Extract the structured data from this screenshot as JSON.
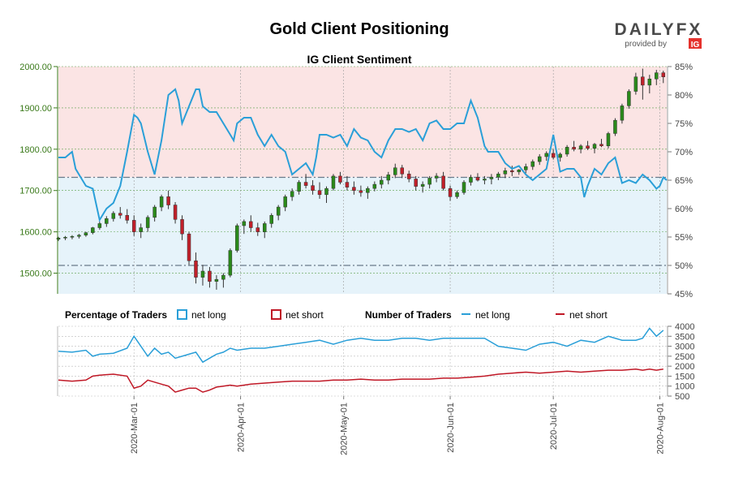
{
  "header": {
    "title": "Gold Client Positioning",
    "brand_name": "DAILYFX",
    "brand_sub": "provided by",
    "brand_ig": "IG"
  },
  "colors": {
    "long": "#2a9fd8",
    "short": "#c01826",
    "bull": "#2a8a1a",
    "bear": "#c0202a",
    "long_zone": "#e6f3fa",
    "short_zone": "#fbe4e4",
    "price_axis": "#3a7a1a"
  },
  "chart_data": [
    {
      "type": "candlestick+line",
      "title": "IG Client Sentiment",
      "y_left_ticks": [
        "2000.00",
        "1900.00",
        "1800.00",
        "1700.00",
        "1600.00",
        "1500.00"
      ],
      "y_left_range": [
        1450,
        2000
      ],
      "y_right_ticks": [
        "85%",
        "80%",
        "75%",
        "70%",
        "65%",
        "60%",
        "55%",
        "50%",
        "45%"
      ],
      "y_right_range": [
        45,
        85
      ],
      "x_ticks": [
        "2020-Mar-01",
        "2020-Apr-01",
        "2020-May-01",
        "2020-Jun-01",
        "2020-Jul-01",
        "2020-Aug-01"
      ],
      "x_range": [
        0,
        177
      ],
      "x_tick_positions": [
        22,
        53,
        83,
        114,
        144,
        175
      ],
      "reference_lines_pct": [
        65.5,
        50
      ],
      "net_long_pct": {
        "x": [
          0,
          2,
          4,
          5,
          6,
          8,
          10,
          12,
          14,
          16,
          18,
          20,
          22,
          23,
          24,
          26,
          27,
          28,
          30,
          32,
          34,
          35,
          36,
          38,
          40,
          41,
          42,
          44,
          46,
          48,
          50,
          51,
          52,
          54,
          56,
          58,
          60,
          62,
          64,
          66,
          67,
          68,
          70,
          72,
          74,
          75,
          76,
          78,
          80,
          82,
          84,
          86,
          88,
          90,
          92,
          94,
          96,
          98,
          100,
          102,
          104,
          106,
          108,
          110,
          112,
          114,
          116,
          118,
          120,
          122,
          124,
          125,
          126,
          128,
          130,
          132,
          134,
          136,
          138,
          140,
          142,
          144,
          146,
          148,
          150,
          152,
          153,
          154,
          156,
          158,
          160,
          162,
          164,
          166,
          168,
          170,
          172,
          174,
          175,
          176,
          177
        ],
        "y": [
          69,
          69,
          70,
          67,
          66,
          64,
          63.5,
          58,
          60,
          61,
          64,
          70,
          76.5,
          76,
          75,
          70,
          68,
          66,
          72,
          80,
          81,
          79,
          75,
          78,
          81,
          81,
          78,
          77,
          77,
          75,
          73,
          72,
          75,
          76,
          76,
          73,
          71,
          73,
          71,
          70,
          68,
          66,
          67,
          68,
          66,
          69,
          73,
          73,
          72.5,
          73,
          71,
          74,
          72.5,
          72,
          70,
          69,
          72,
          74,
          74,
          73.5,
          74,
          72,
          75,
          75.5,
          74,
          74,
          75,
          75,
          79,
          76,
          71,
          70,
          70,
          70,
          68,
          67,
          67.5,
          66,
          65,
          66,
          67,
          73,
          66.5,
          67,
          67,
          65.5,
          62,
          64,
          67,
          66,
          68,
          69,
          64.5,
          65,
          64.5,
          66,
          65,
          63.5,
          64,
          65.5,
          65
        ]
      },
      "price_ohlc": [
        [
          1582,
          1588,
          1578,
          1585
        ],
        [
          1585,
          1590,
          1580,
          1587
        ],
        [
          1587,
          1592,
          1582,
          1589
        ],
        [
          1589,
          1595,
          1584,
          1592
        ],
        [
          1592,
          1600,
          1588,
          1598
        ],
        [
          1598,
          1612,
          1594,
          1610
        ],
        [
          1610,
          1625,
          1605,
          1620
        ],
        [
          1620,
          1638,
          1612,
          1632
        ],
        [
          1632,
          1650,
          1625,
          1645
        ],
        [
          1645,
          1660,
          1632,
          1640
        ],
        [
          1640,
          1655,
          1620,
          1628
        ],
        [
          1628,
          1640,
          1590,
          1600
        ],
        [
          1600,
          1620,
          1585,
          1610
        ],
        [
          1610,
          1640,
          1600,
          1635
        ],
        [
          1635,
          1665,
          1625,
          1660
        ],
        [
          1660,
          1690,
          1650,
          1685
        ],
        [
          1685,
          1700,
          1655,
          1665
        ],
        [
          1665,
          1672,
          1620,
          1630
        ],
        [
          1630,
          1640,
          1580,
          1595
        ],
        [
          1595,
          1600,
          1520,
          1530
        ],
        [
          1530,
          1550,
          1475,
          1490
        ],
        [
          1490,
          1520,
          1470,
          1505
        ],
        [
          1505,
          1515,
          1465,
          1480
        ],
        [
          1480,
          1495,
          1460,
          1485
        ],
        [
          1485,
          1500,
          1465,
          1495
        ],
        [
          1495,
          1560,
          1490,
          1555
        ],
        [
          1555,
          1620,
          1550,
          1615
        ],
        [
          1615,
          1630,
          1595,
          1625
        ],
        [
          1625,
          1640,
          1600,
          1610
        ],
        [
          1610,
          1622,
          1590,
          1600
        ],
        [
          1600,
          1625,
          1585,
          1620
        ],
        [
          1620,
          1645,
          1610,
          1640
        ],
        [
          1640,
          1665,
          1628,
          1660
        ],
        [
          1660,
          1690,
          1650,
          1685
        ],
        [
          1685,
          1705,
          1675,
          1698
        ],
        [
          1698,
          1725,
          1690,
          1720
        ],
        [
          1720,
          1740,
          1705,
          1712
        ],
        [
          1712,
          1725,
          1690,
          1700
        ],
        [
          1700,
          1720,
          1680,
          1690
        ],
        [
          1690,
          1710,
          1670,
          1705
        ],
        [
          1705,
          1740,
          1700,
          1735
        ],
        [
          1735,
          1745,
          1715,
          1720
        ],
        [
          1720,
          1735,
          1700,
          1708
        ],
        [
          1708,
          1722,
          1690,
          1700
        ],
        [
          1700,
          1712,
          1685,
          1695
        ],
        [
          1695,
          1710,
          1680,
          1705
        ],
        [
          1705,
          1722,
          1698,
          1715
        ],
        [
          1715,
          1735,
          1705,
          1725
        ],
        [
          1725,
          1745,
          1715,
          1738
        ],
        [
          1738,
          1765,
          1730,
          1755
        ],
        [
          1755,
          1762,
          1730,
          1740
        ],
        [
          1740,
          1748,
          1720,
          1728
        ],
        [
          1728,
          1735,
          1700,
          1710
        ],
        [
          1710,
          1722,
          1695,
          1715
        ],
        [
          1715,
          1735,
          1705,
          1730
        ],
        [
          1730,
          1742,
          1720,
          1735
        ],
        [
          1735,
          1745,
          1700,
          1705
        ],
        [
          1705,
          1712,
          1675,
          1685
        ],
        [
          1685,
          1700,
          1680,
          1695
        ],
        [
          1695,
          1725,
          1690,
          1720
        ],
        [
          1720,
          1738,
          1712,
          1732
        ],
        [
          1732,
          1742,
          1722,
          1725
        ],
        [
          1725,
          1735,
          1715,
          1728
        ],
        [
          1728,
          1740,
          1715,
          1732
        ],
        [
          1732,
          1745,
          1725,
          1740
        ],
        [
          1740,
          1755,
          1730,
          1748
        ],
        [
          1748,
          1760,
          1735,
          1745
        ],
        [
          1745,
          1752,
          1738,
          1750
        ],
        [
          1750,
          1765,
          1742,
          1758
        ],
        [
          1758,
          1775,
          1750,
          1770
        ],
        [
          1770,
          1788,
          1762,
          1782
        ],
        [
          1782,
          1795,
          1772,
          1790
        ],
        [
          1790,
          1800,
          1775,
          1780
        ],
        [
          1780,
          1792,
          1770,
          1788
        ],
        [
          1788,
          1810,
          1782,
          1805
        ],
        [
          1805,
          1820,
          1795,
          1800
        ],
        [
          1800,
          1812,
          1790,
          1808
        ],
        [
          1808,
          1820,
          1798,
          1802
        ],
        [
          1802,
          1815,
          1790,
          1812
        ],
        [
          1812,
          1825,
          1805,
          1808
        ],
        [
          1808,
          1842,
          1802,
          1838
        ],
        [
          1838,
          1875,
          1832,
          1870
        ],
        [
          1870,
          1910,
          1862,
          1905
        ],
        [
          1905,
          1945,
          1898,
          1940
        ],
        [
          1940,
          1985,
          1932,
          1975
        ],
        [
          1975,
          1995,
          1920,
          1955
        ],
        [
          1955,
          1980,
          1935,
          1970
        ],
        [
          1970,
          1992,
          1955,
          1985
        ],
        [
          1985,
          1990,
          1960,
          1975
        ]
      ],
      "price_x_start": 0,
      "price_x_step": 2,
      "legend": {
        "pct_label": "Percentage of Traders",
        "count_label": "Number of Traders",
        "net_long": "net long",
        "net_short": "net short"
      }
    },
    {
      "type": "line",
      "y_ticks": [
        "4000",
        "3500",
        "3000",
        "2500",
        "2000",
        "1500",
        "1000",
        "500"
      ],
      "y_range": [
        500,
        4000
      ],
      "series": [
        {
          "name": "net long",
          "x": [
            0,
            4,
            8,
            10,
            12,
            16,
            20,
            22,
            24,
            26,
            28,
            30,
            32,
            34,
            36,
            38,
            40,
            42,
            44,
            46,
            48,
            50,
            52,
            56,
            60,
            64,
            68,
            72,
            76,
            80,
            84,
            88,
            92,
            96,
            100,
            104,
            108,
            112,
            116,
            120,
            124,
            128,
            132,
            136,
            140,
            144,
            148,
            152,
            156,
            160,
            164,
            168,
            170,
            172,
            174,
            176
          ],
          "y": [
            2750,
            2700,
            2800,
            2500,
            2600,
            2650,
            2900,
            3500,
            3000,
            2500,
            2900,
            2600,
            2700,
            2400,
            2500,
            2600,
            2700,
            2200,
            2400,
            2600,
            2700,
            2900,
            2800,
            2900,
            2900,
            3000,
            3100,
            3200,
            3300,
            3100,
            3300,
            3400,
            3300,
            3300,
            3400,
            3400,
            3300,
            3400,
            3400,
            3400,
            3400,
            3000,
            2900,
            2800,
            3100,
            3200,
            3000,
            3300,
            3200,
            3500,
            3300,
            3300,
            3400,
            3900,
            3500,
            3800
          ]
        },
        {
          "name": "net short",
          "x": [
            0,
            4,
            8,
            10,
            12,
            16,
            20,
            22,
            24,
            26,
            28,
            30,
            32,
            34,
            36,
            38,
            40,
            42,
            44,
            46,
            48,
            50,
            52,
            56,
            60,
            64,
            68,
            72,
            76,
            80,
            84,
            88,
            92,
            96,
            100,
            104,
            108,
            112,
            116,
            120,
            124,
            128,
            132,
            136,
            140,
            144,
            148,
            152,
            156,
            160,
            164,
            168,
            170,
            172,
            174,
            176
          ],
          "y": [
            1300,
            1250,
            1300,
            1500,
            1550,
            1600,
            1500,
            900,
            1000,
            1300,
            1200,
            1100,
            1000,
            700,
            800,
            900,
            900,
            700,
            800,
            950,
            1000,
            1050,
            1000,
            1100,
            1150,
            1200,
            1250,
            1250,
            1250,
            1300,
            1300,
            1350,
            1300,
            1300,
            1350,
            1350,
            1350,
            1400,
            1400,
            1450,
            1500,
            1600,
            1650,
            1700,
            1650,
            1700,
            1750,
            1700,
            1750,
            1800,
            1800,
            1850,
            1800,
            1850,
            1800,
            1850
          ]
        }
      ]
    }
  ]
}
